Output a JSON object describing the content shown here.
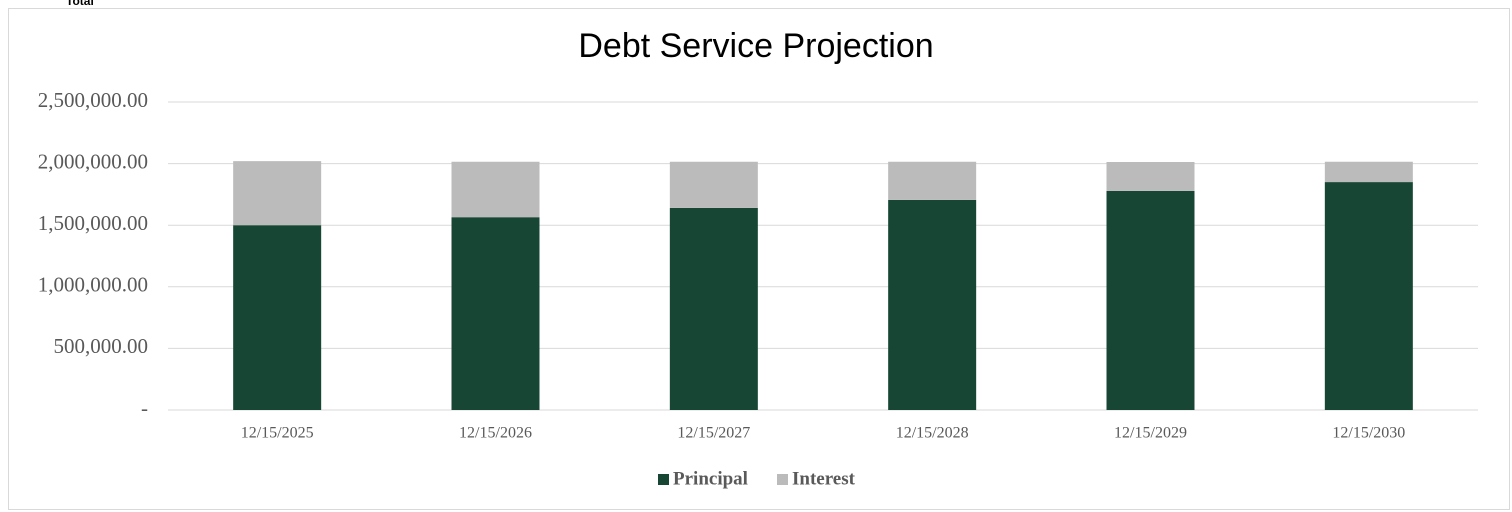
{
  "corner_label": "Total",
  "chart_data": {
    "type": "stacked_bar",
    "title": "Debt Service Projection",
    "categories": [
      "12/15/2025",
      "12/15/2026",
      "12/15/2027",
      "12/15/2028",
      "12/15/2029",
      "12/15/2030"
    ],
    "series": [
      {
        "name": "Principal",
        "color": "#174734",
        "values": [
          1500000,
          1565000,
          1640000,
          1705000,
          1778000,
          1850000
        ]
      },
      {
        "name": "Interest",
        "color": "#bbbbbb",
        "values": [
          520000,
          450000,
          375000,
          310000,
          235000,
          165000
        ]
      }
    ],
    "ylim": [
      0,
      2500000
    ],
    "yticks": [
      {
        "value": 0,
        "label": "-"
      },
      {
        "value": 500000,
        "label": "500,000.00"
      },
      {
        "value": 1000000,
        "label": "1,000,000.00"
      },
      {
        "value": 1500000,
        "label": "1,500,000.00"
      },
      {
        "value": 2000000,
        "label": "2,000,000.00"
      },
      {
        "value": 2500000,
        "label": "2,500,000.00"
      }
    ],
    "grid": true,
    "legend": "bottom"
  }
}
